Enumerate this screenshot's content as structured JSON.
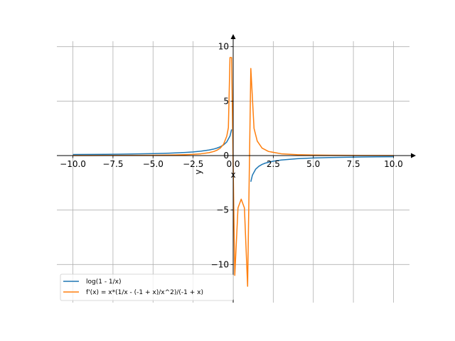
{
  "chart_data": {
    "type": "line",
    "xlabel": "x",
    "ylabel": "y",
    "xlim": [
      -11,
      11
    ],
    "ylim": [
      -13.5,
      10.5
    ],
    "grid": true,
    "legend_position": "lower-left",
    "x_ticks": [
      -10,
      -7.5,
      -5,
      -2.5,
      0,
      2.5,
      5,
      7.5,
      10
    ],
    "x_tick_labels": [
      "−10.0",
      "−7.5",
      "−5.0",
      "−2.5",
      "0.0",
      "2.5",
      "5.0",
      "7.5",
      "10.0"
    ],
    "y_ticks": [
      -10,
      -5,
      0,
      5,
      10
    ],
    "y_tick_labels": [
      "−10",
      "−5",
      "0",
      "5",
      "10"
    ],
    "series": [
      {
        "name": "log(1 - 1/x)",
        "color": "#1f77b4",
        "segments": [
          {
            "x": [
              -10,
              -9,
              -8,
              -7,
              -6,
              -5,
              -4,
              -3,
              -2.5,
              -2,
              -1.5,
              -1.2,
              -1.0,
              -0.8,
              -0.6,
              -0.4,
              -0.2,
              -0.1
            ],
            "y": [
              0.095,
              0.105,
              0.118,
              0.134,
              0.154,
              0.182,
              0.223,
              0.288,
              0.336,
              0.405,
              0.511,
              0.606,
              0.693,
              0.811,
              0.981,
              1.253,
              1.792,
              2.398
            ]
          },
          {
            "x": [
              1.1,
              1.2,
              1.4,
              1.6,
              1.8,
              2.0,
              2.5,
              3,
              4,
              5,
              6,
              7,
              8,
              9,
              10
            ],
            "y": [
              -2.398,
              -1.792,
              -1.253,
              -0.981,
              -0.811,
              -0.693,
              -0.511,
              -0.405,
              -0.288,
              -0.223,
              -0.182,
              -0.154,
              -0.134,
              -0.118,
              -0.105
            ]
          }
        ]
      },
      {
        "name": "f'(x) = x*(1/x - (-1 + x)/x^2)/(-1 + x)",
        "color": "#ff7f0e",
        "segments": [
          {
            "x": [
              -10,
              -8,
              -6,
              -5,
              -4,
              -3,
              -2.5,
              -2,
              -1.5,
              -1.2,
              -1.0,
              -0.8,
              -0.6,
              -0.4,
              -0.3,
              -0.2,
              -0.1,
              0.1,
              0.3,
              0.5,
              0.7,
              0.9,
              1.1,
              1.3,
              1.5,
              1.8,
              2.2,
              3,
              4,
              5,
              6,
              7,
              8,
              9,
              10
            ],
            "y": [
              0.009,
              0.014,
              0.024,
              0.033,
              0.05,
              0.083,
              0.114,
              0.167,
              0.267,
              0.379,
              0.5,
              0.694,
              1.042,
              1.786,
              2.564,
              9.0,
              9.0,
              -11.0,
              -4.8,
              -4.0,
              -4.8,
              -12.0,
              8.0,
              2.5,
              1.33,
              0.69,
              0.379,
              0.167,
              0.083,
              0.05,
              0.033,
              0.024,
              0.018,
              0.014,
              0.011
            ]
          }
        ]
      }
    ]
  }
}
